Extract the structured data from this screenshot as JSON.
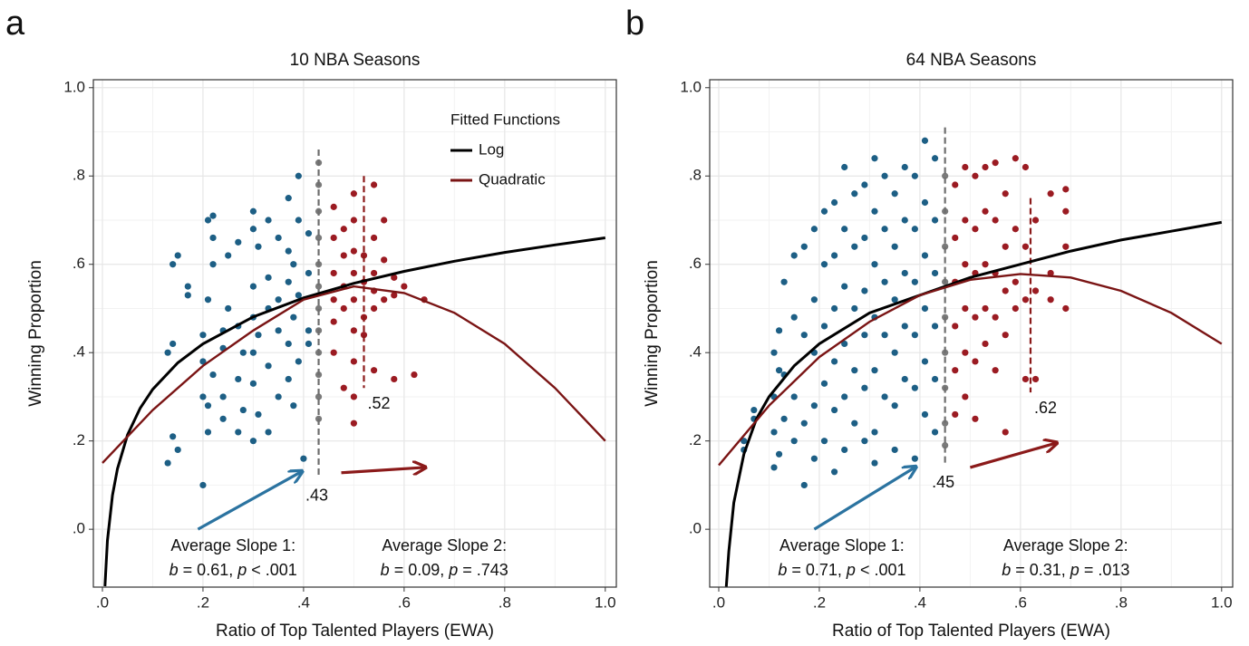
{
  "chart_data": [
    {
      "type": "scatter",
      "panel_label": "a",
      "title": "10 NBA Seasons",
      "x_label": "Ratio of Top Talented Players (EWA)",
      "y_label": "Winning Proportion",
      "xlim": [
        -0.018,
        1.022
      ],
      "ylim": [
        -0.131,
        1.018
      ],
      "xticks": [
        {
          "value": 0,
          "label": ".0"
        },
        {
          "value": 0.2,
          "label": ".2"
        },
        {
          "value": 0.4,
          "label": ".4"
        },
        {
          "value": 0.6,
          "label": ".6"
        },
        {
          "value": 0.8,
          "label": ".8"
        },
        {
          "value": 1,
          "label": "1.0"
        }
      ],
      "yticks": [
        {
          "value": 0,
          "label": ".0"
        },
        {
          "value": 0.2,
          "label": ".2"
        },
        {
          "value": 0.4,
          "label": ".4"
        },
        {
          "value": 0.6,
          "label": ".6"
        },
        {
          "value": 0.8,
          "label": ".8"
        },
        {
          "value": 1,
          "label": "1.0"
        }
      ],
      "grid": true,
      "legend_title": "Fitted Functions",
      "legend": "top-right",
      "points": [
        {
          "color": "#1d5f85",
          "x": [
            0.13,
            0.13,
            0.14,
            0.14,
            0.14,
            0.15,
            0.15,
            0.17,
            0.17,
            0.2,
            0.2,
            0.2,
            0.2,
            0.21,
            0.21,
            0.21,
            0.21,
            0.22,
            0.22,
            0.22,
            0.22,
            0.24,
            0.24,
            0.24,
            0.24,
            0.25,
            0.25,
            0.27,
            0.27,
            0.27,
            0.27,
            0.28,
            0.28,
            0.3,
            0.3,
            0.3,
            0.3,
            0.3,
            0.3,
            0.3,
            0.31,
            0.31,
            0.31,
            0.33,
            0.33,
            0.33,
            0.33,
            0.33,
            0.35,
            0.35,
            0.35,
            0.35,
            0.37,
            0.37,
            0.37,
            0.37,
            0.37,
            0.38,
            0.38,
            0.38,
            0.39,
            0.39,
            0.39,
            0.39,
            0.4,
            0.41,
            0.41,
            0.41,
            0.41
          ],
          "values": [
            0.4,
            0.15,
            0.6,
            0.42,
            0.21,
            0.62,
            0.18,
            0.55,
            0.53,
            0.1,
            0.38,
            0.44,
            0.3,
            0.7,
            0.22,
            0.28,
            0.52,
            0.71,
            0.66,
            0.6,
            0.35,
            0.41,
            0.3,
            0.25,
            0.45,
            0.62,
            0.5,
            0.65,
            0.46,
            0.34,
            0.22,
            0.4,
            0.27,
            0.72,
            0.68,
            0.55,
            0.48,
            0.4,
            0.33,
            0.2,
            0.64,
            0.44,
            0.26,
            0.7,
            0.57,
            0.5,
            0.37,
            0.22,
            0.66,
            0.52,
            0.45,
            0.3,
            0.75,
            0.63,
            0.56,
            0.42,
            0.34,
            0.6,
            0.48,
            0.28,
            0.8,
            0.7,
            0.53,
            0.38,
            0.16,
            0.67,
            0.58,
            0.45,
            0.42
          ]
        },
        {
          "color": "#7a7a7a",
          "x": [
            0.43,
            0.43,
            0.43,
            0.43,
            0.43,
            0.43,
            0.43,
            0.43,
            0.43,
            0.43,
            0.43,
            0.43
          ],
          "values": [
            0.83,
            0.78,
            0.72,
            0.66,
            0.6,
            0.55,
            0.5,
            0.45,
            0.4,
            0.35,
            0.3,
            0.25
          ]
        },
        {
          "color": "#9b1b22",
          "x": [
            0.46,
            0.46,
            0.46,
            0.46,
            0.46,
            0.46,
            0.48,
            0.48,
            0.48,
            0.48,
            0.48,
            0.5,
            0.5,
            0.5,
            0.5,
            0.5,
            0.5,
            0.5,
            0.5,
            0.5,
            0.52,
            0.52,
            0.52,
            0.52,
            0.54,
            0.54,
            0.54,
            0.54,
            0.54,
            0.54,
            0.56,
            0.56,
            0.56,
            0.58,
            0.58,
            0.58,
            0.6,
            0.62,
            0.64
          ],
          "values": [
            0.73,
            0.66,
            0.58,
            0.52,
            0.47,
            0.4,
            0.68,
            0.62,
            0.55,
            0.5,
            0.32,
            0.76,
            0.7,
            0.63,
            0.58,
            0.52,
            0.45,
            0.38,
            0.3,
            0.24,
            0.62,
            0.56,
            0.48,
            0.44,
            0.78,
            0.66,
            0.58,
            0.54,
            0.5,
            0.36,
            0.7,
            0.61,
            0.52,
            0.57,
            0.53,
            0.34,
            0.55,
            0.35,
            0.52
          ]
        }
      ],
      "fits": [
        {
          "name": "Log",
          "color": "#000000",
          "x": [
            0.005,
            0.01,
            0.02,
            0.03,
            0.05,
            0.075,
            0.1,
            0.15,
            0.2,
            0.3,
            0.4,
            0.5,
            0.6,
            0.7,
            0.8,
            0.9,
            1.0
          ],
          "values": [
            -0.129,
            -0.026,
            0.077,
            0.137,
            0.214,
            0.274,
            0.317,
            0.377,
            0.42,
            0.481,
            0.524,
            0.557,
            0.584,
            0.607,
            0.627,
            0.644,
            0.66
          ]
        },
        {
          "name": "Quadratic",
          "color": "#7a1414",
          "x": [
            0,
            0.1,
            0.2,
            0.3,
            0.4,
            0.5,
            0.6,
            0.7,
            0.8,
            0.9,
            1.0
          ],
          "values": [
            0.15,
            0.27,
            0.37,
            0.45,
            0.52,
            0.55,
            0.535,
            0.49,
            0.42,
            0.32,
            0.2
          ]
        }
      ],
      "thresholds": [
        {
          "value": 0.43,
          "label": ".43",
          "color": "#6e6e6e"
        },
        {
          "value": 0.52,
          "label": ".52",
          "color": "#8b1a1a"
        }
      ],
      "annotations": [
        {
          "label": "Average Slope 1:",
          "parts": [
            "b",
            " = 0.61, ",
            "p",
            " < .001"
          ],
          "color": "#246a94"
        },
        {
          "label": "Average Slope 2:",
          "parts": [
            "b",
            " = 0.09, ",
            "p",
            " = .743"
          ],
          "color": "#8b1a1a"
        }
      ]
    },
    {
      "type": "scatter",
      "panel_label": "b",
      "title": "64 NBA Seasons",
      "x_label": "Ratio of Top Talented Players (EWA)",
      "y_label": "Winning Proportion",
      "xlim": [
        -0.018,
        1.022
      ],
      "ylim": [
        -0.131,
        1.018
      ],
      "xticks": [
        {
          "value": 0,
          "label": ".0"
        },
        {
          "value": 0.2,
          "label": ".2"
        },
        {
          "value": 0.4,
          "label": ".4"
        },
        {
          "value": 0.6,
          "label": ".6"
        },
        {
          "value": 0.8,
          "label": ".8"
        },
        {
          "value": 1,
          "label": "1.0"
        }
      ],
      "yticks": [
        {
          "value": 0,
          "label": ".0"
        },
        {
          "value": 0.2,
          "label": ".2"
        },
        {
          "value": 0.4,
          "label": ".4"
        },
        {
          "value": 0.6,
          "label": ".6"
        },
        {
          "value": 0.8,
          "label": ".8"
        },
        {
          "value": 1,
          "label": "1.0"
        }
      ],
      "grid": true,
      "points": [
        {
          "color": "#1d5f85",
          "x": [
            0.05,
            0.05,
            0.07,
            0.07,
            0.11,
            0.11,
            0.11,
            0.11,
            0.12,
            0.12,
            0.12,
            0.13,
            0.13,
            0.13,
            0.15,
            0.15,
            0.15,
            0.15,
            0.17,
            0.17,
            0.17,
            0.17,
            0.19,
            0.19,
            0.19,
            0.19,
            0.19,
            0.21,
            0.21,
            0.21,
            0.21,
            0.21,
            0.23,
            0.23,
            0.23,
            0.23,
            0.23,
            0.23,
            0.25,
            0.25,
            0.25,
            0.25,
            0.25,
            0.25,
            0.27,
            0.27,
            0.27,
            0.27,
            0.27,
            0.29,
            0.29,
            0.29,
            0.29,
            0.29,
            0.29,
            0.31,
            0.31,
            0.31,
            0.31,
            0.31,
            0.31,
            0.31,
            0.33,
            0.33,
            0.33,
            0.33,
            0.33,
            0.35,
            0.35,
            0.35,
            0.35,
            0.35,
            0.35,
            0.37,
            0.37,
            0.37,
            0.37,
            0.37,
            0.39,
            0.39,
            0.39,
            0.39,
            0.39,
            0.39,
            0.41,
            0.41,
            0.41,
            0.41,
            0.41,
            0.41,
            0.43,
            0.43,
            0.43,
            0.43,
            0.43,
            0.43
          ],
          "values": [
            0.18,
            0.2,
            0.27,
            0.25,
            0.4,
            0.3,
            0.22,
            0.14,
            0.45,
            0.36,
            0.17,
            0.56,
            0.35,
            0.25,
            0.62,
            0.48,
            0.3,
            0.2,
            0.64,
            0.44,
            0.24,
            0.1,
            0.68,
            0.52,
            0.4,
            0.28,
            0.16,
            0.72,
            0.6,
            0.46,
            0.33,
            0.2,
            0.74,
            0.62,
            0.5,
            0.38,
            0.27,
            0.13,
            0.82,
            0.68,
            0.55,
            0.42,
            0.3,
            0.18,
            0.76,
            0.64,
            0.5,
            0.36,
            0.24,
            0.78,
            0.66,
            0.54,
            0.44,
            0.32,
            0.2,
            0.84,
            0.72,
            0.6,
            0.48,
            0.36,
            0.22,
            0.15,
            0.8,
            0.68,
            0.56,
            0.44,
            0.3,
            0.76,
            0.64,
            0.52,
            0.4,
            0.28,
            0.18,
            0.82,
            0.7,
            0.58,
            0.46,
            0.34,
            0.8,
            0.68,
            0.56,
            0.44,
            0.32,
            0.16,
            0.88,
            0.74,
            0.62,
            0.5,
            0.38,
            0.26,
            0.84,
            0.7,
            0.58,
            0.46,
            0.34,
            0.22
          ]
        },
        {
          "color": "#7a7a7a",
          "x": [
            0.45,
            0.45,
            0.45,
            0.45,
            0.45,
            0.45,
            0.45,
            0.45,
            0.45
          ],
          "values": [
            0.8,
            0.72,
            0.64,
            0.56,
            0.48,
            0.4,
            0.32,
            0.24,
            0.19
          ]
        },
        {
          "color": "#9b1b22",
          "x": [
            0.47,
            0.47,
            0.47,
            0.47,
            0.47,
            0.47,
            0.49,
            0.49,
            0.49,
            0.49,
            0.49,
            0.49,
            0.51,
            0.51,
            0.51,
            0.51,
            0.51,
            0.51,
            0.53,
            0.53,
            0.53,
            0.53,
            0.53,
            0.55,
            0.55,
            0.55,
            0.55,
            0.55,
            0.57,
            0.57,
            0.57,
            0.57,
            0.57,
            0.59,
            0.59,
            0.59,
            0.59,
            0.61,
            0.61,
            0.61,
            0.61,
            0.63,
            0.63,
            0.63,
            0.66,
            0.66,
            0.66,
            0.69,
            0.69,
            0.69,
            0.69
          ],
          "values": [
            0.78,
            0.66,
            0.56,
            0.46,
            0.36,
            0.26,
            0.82,
            0.7,
            0.6,
            0.5,
            0.4,
            0.3,
            0.8,
            0.68,
            0.58,
            0.48,
            0.38,
            0.25,
            0.82,
            0.72,
            0.6,
            0.5,
            0.42,
            0.83,
            0.7,
            0.58,
            0.48,
            0.36,
            0.76,
            0.64,
            0.54,
            0.44,
            0.22,
            0.84,
            0.68,
            0.56,
            0.5,
            0.82,
            0.64,
            0.52,
            0.34,
            0.7,
            0.54,
            0.34,
            0.76,
            0.58,
            0.52,
            0.77,
            0.72,
            0.64,
            0.5
          ]
        }
      ],
      "fits": [
        {
          "color": "#000000",
          "x": [
            0.015,
            0.02,
            0.03,
            0.05,
            0.075,
            0.1,
            0.15,
            0.2,
            0.3,
            0.4,
            0.5,
            0.6,
            0.7,
            0.8,
            0.9,
            1.0
          ],
          "values": [
            -0.13,
            -0.05,
            0.06,
            0.17,
            0.25,
            0.3,
            0.37,
            0.42,
            0.49,
            0.53,
            0.57,
            0.6,
            0.63,
            0.655,
            0.675,
            0.695
          ]
        },
        {
          "color": "#7a1414",
          "x": [
            0,
            0.1,
            0.2,
            0.3,
            0.4,
            0.5,
            0.6,
            0.7,
            0.8,
            0.9,
            1.0
          ],
          "values": [
            0.145,
            0.28,
            0.39,
            0.47,
            0.53,
            0.565,
            0.578,
            0.57,
            0.54,
            0.49,
            0.42
          ]
        }
      ],
      "thresholds": [
        {
          "value": 0.45,
          "label": ".45",
          "color": "#6e6e6e"
        },
        {
          "value": 0.62,
          "label": ".62",
          "color": "#8b1a1a"
        }
      ],
      "annotations": [
        {
          "label": "Average Slope 1:",
          "parts": [
            "b",
            " = 0.71, ",
            "p",
            " < .001"
          ],
          "color": "#246a94"
        },
        {
          "label": "Average Slope 2:",
          "parts": [
            "b",
            " = 0.31, ",
            "p",
            " = .013"
          ],
          "color": "#8b1a1a"
        }
      ]
    }
  ]
}
